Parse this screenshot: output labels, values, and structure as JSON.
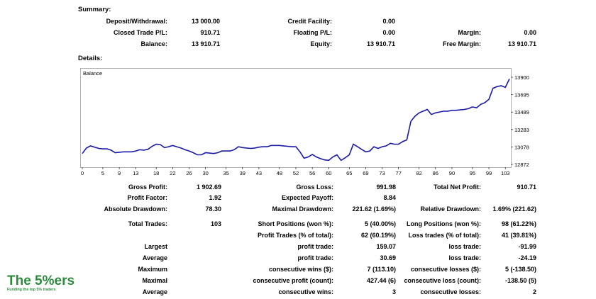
{
  "summary": {
    "heading": "Summary:",
    "deposit_label": "Deposit/Withdrawal:",
    "deposit_value": "13 000.00",
    "closed_pl_label": "Closed Trade P/L:",
    "closed_pl_value": "910.71",
    "balance_label": "Balance:",
    "balance_value": "13 910.71",
    "credit_label": "Credit Facility:",
    "credit_value": "0.00",
    "floating_label": "Floating P/L:",
    "floating_value": "0.00",
    "equity_label": "Equity:",
    "equity_value": "13 910.71",
    "margin_label": "Margin:",
    "margin_value": "0.00",
    "free_margin_label": "Free Margin:",
    "free_margin_value": "13 910.71"
  },
  "details": {
    "heading": "Details:"
  },
  "chart_data": {
    "type": "line",
    "title": "Balance",
    "x_ticks": [
      "0",
      "5",
      "9",
      "13",
      "18",
      "22",
      "26",
      "30",
      "35",
      "39",
      "43",
      "48",
      "52",
      "56",
      "60",
      "65",
      "69",
      "73",
      "77",
      "82",
      "86",
      "90",
      "95",
      "99",
      "103"
    ],
    "y_ticks": [
      "13900",
      "13695",
      "13489",
      "13283",
      "13078",
      "12872"
    ],
    "ylim": [
      12872,
      13900
    ],
    "xlim": [
      0,
      104
    ],
    "series": [
      {
        "color": "#1a1aa8",
        "x": [
          0,
          1,
          2,
          3,
          4,
          5,
          6,
          7,
          8,
          9,
          10,
          11,
          12,
          13,
          14,
          15,
          16,
          17,
          18,
          19,
          20,
          21,
          22,
          23,
          24,
          25,
          26,
          27,
          28,
          29,
          30,
          31,
          32,
          33,
          34,
          35,
          36,
          37,
          38,
          39,
          40,
          41,
          42,
          43,
          44,
          45,
          46,
          47,
          48,
          49,
          50,
          51,
          52,
          53,
          54,
          55,
          56,
          57,
          58,
          59,
          60,
          61,
          62,
          63,
          64,
          65,
          66,
          67,
          68,
          69,
          70,
          71,
          72,
          73,
          74,
          75,
          76,
          77,
          78,
          79,
          80,
          81,
          82,
          83,
          84,
          85,
          86,
          87,
          88,
          89,
          90,
          91,
          92,
          93,
          94,
          95,
          96,
          97,
          98,
          99,
          100,
          101,
          102,
          103,
          104
        ],
        "y": [
          13000,
          13065,
          13090,
          13075,
          13060,
          13055,
          13055,
          13040,
          13010,
          13015,
          13020,
          13020,
          13020,
          13030,
          13045,
          13040,
          13050,
          13085,
          13110,
          13105,
          13070,
          13080,
          13095,
          13080,
          13065,
          13045,
          13030,
          13010,
          12985,
          12985,
          13010,
          13005,
          13000,
          13010,
          13030,
          13030,
          13030,
          13045,
          13080,
          13070,
          13065,
          13060,
          13065,
          13075,
          13080,
          13080,
          13095,
          13095,
          13095,
          13090,
          13085,
          13080,
          13080,
          13020,
          12945,
          12960,
          12990,
          12960,
          12940,
          12925,
          12920,
          12960,
          12985,
          12920,
          12950,
          12985,
          13110,
          13080,
          13050,
          13020,
          13030,
          13080,
          13060,
          13080,
          13090,
          13120,
          13110,
          13110,
          13140,
          13160,
          13380,
          13440,
          13480,
          13500,
          13520,
          13460,
          13480,
          13490,
          13500,
          13500,
          13510,
          13510,
          13515,
          13520,
          13530,
          13550,
          13540,
          13580,
          13600,
          13640,
          13770,
          13790,
          13800,
          13780,
          13880
        ]
      }
    ]
  },
  "stats": {
    "gross_profit_label": "Gross Profit:",
    "gross_profit_value": "1 902.69",
    "gross_loss_label": "Gross Loss:",
    "gross_loss_value": "991.98",
    "total_net_label": "Total Net Profit:",
    "total_net_value": "910.71",
    "profit_factor_label": "Profit Factor:",
    "profit_factor_value": "1.92",
    "expected_payoff_label": "Expected Payoff:",
    "expected_payoff_value": "8.84",
    "abs_drawdown_label": "Absolute Drawdown:",
    "abs_drawdown_value": "78.30",
    "max_drawdown_label": "Maximal Drawdown:",
    "max_drawdown_value": "221.62 (1.69%)",
    "rel_drawdown_label": "Relative Drawdown:",
    "rel_drawdown_value": "1.69% (221.62)",
    "total_trades_label": "Total Trades:",
    "total_trades_value": "103",
    "short_pos_label": "Short Positions (won %):",
    "short_pos_value": "5 (40.00%)",
    "long_pos_label": "Long Positions (won %):",
    "long_pos_value": "98 (61.22%)",
    "profit_trades_label": "Profit Trades (% of total):",
    "profit_trades_value": "62 (60.19%)",
    "loss_trades_label": "Loss trades (% of total):",
    "loss_trades_value": "41 (39.81%)",
    "largest_label": "Largest",
    "largest_profit_label": "profit trade:",
    "largest_profit_value": "159.07",
    "largest_loss_label": "loss trade:",
    "largest_loss_value": "-91.99",
    "average_label": "Average",
    "average_profit_label": "profit trade:",
    "average_profit_value": "30.69",
    "average_loss_label": "loss trade:",
    "average_loss_value": "-24.19",
    "maximum_label": "Maximum",
    "max_cons_wins_label": "consecutive wins ($):",
    "max_cons_wins_value": "7 (113.10)",
    "max_cons_losses_label": "consecutive losses ($):",
    "max_cons_losses_value": "5 (-138.50)",
    "maximal_label": "Maximal",
    "maximal_cons_profit_label": "consecutive profit (count):",
    "maximal_cons_profit_value": "427.44 (6)",
    "maximal_cons_loss_label": "consecutive loss (count):",
    "maximal_cons_loss_value": "-138.50 (5)",
    "average2_label": "Average",
    "avg_cons_wins_label": "consecutive wins:",
    "avg_cons_wins_value": "3",
    "avg_cons_losses_label": "consecutive losses:",
    "avg_cons_losses_value": "2"
  },
  "logo": {
    "name": "The 5%ers",
    "tagline": "Funding the top 5% traders",
    "green": "#2e8b3e"
  }
}
